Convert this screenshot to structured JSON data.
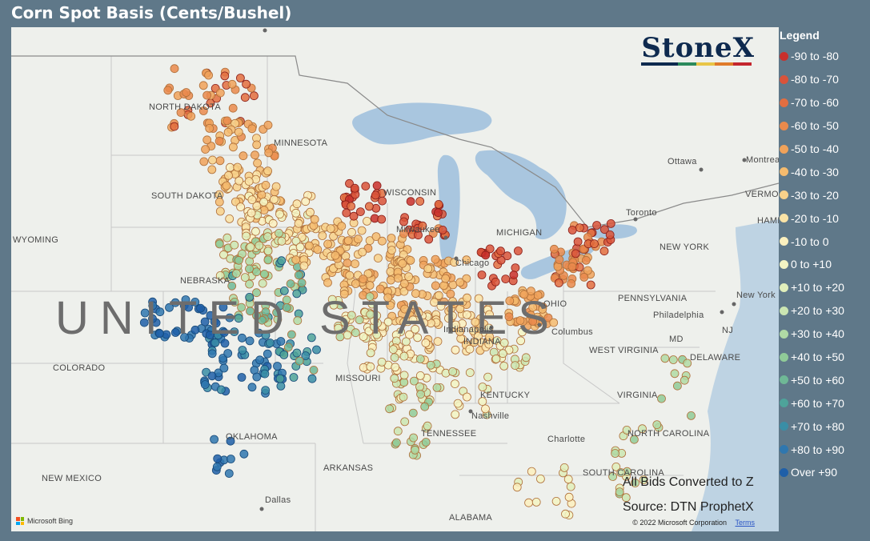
{
  "title": "Corn Spot Basis (Cents/Bushel)",
  "logo": {
    "text": "StoneX",
    "bar_colors": [
      "#0e2a4f",
      "#0e2a4f",
      "#2b8a5c",
      "#e8c547",
      "#e07b2a",
      "#c4262e"
    ]
  },
  "map": {
    "places": [
      {
        "name": "UNITED STATES",
        "big": true
      },
      {
        "name": "NORTH DAKOTA"
      },
      {
        "name": "MINNESOTA"
      },
      {
        "name": "SOUTH DAKOTA"
      },
      {
        "name": "WISCONSIN"
      },
      {
        "name": "WYOMING"
      },
      {
        "name": "NEBRASKA"
      },
      {
        "name": "COLORADO"
      },
      {
        "name": "MISSOURI"
      },
      {
        "name": "KENTUCKY"
      },
      {
        "name": "OKLAHOMA"
      },
      {
        "name": "TENNESSEE"
      },
      {
        "name": "ARKANSAS"
      },
      {
        "name": "NEW MEXICO"
      },
      {
        "name": "ALABAMA"
      },
      {
        "name": "Milwaukee"
      },
      {
        "name": "Chicago"
      },
      {
        "name": "MICHIGAN"
      },
      {
        "name": "Indianapolis"
      },
      {
        "name": "INDIANA"
      },
      {
        "name": "OHIO"
      },
      {
        "name": "Columbus"
      },
      {
        "name": "WEST VIRGINIA"
      },
      {
        "name": "VIRGINIA"
      },
      {
        "name": "PENNSYLVANIA"
      },
      {
        "name": "Philadelphia"
      },
      {
        "name": "NEW YORK"
      },
      {
        "name": "New York"
      },
      {
        "name": "NJ"
      },
      {
        "name": "MD"
      },
      {
        "name": "DELAWARE"
      },
      {
        "name": "Toronto"
      },
      {
        "name": "Ottawa"
      },
      {
        "name": "Montreal"
      },
      {
        "name": "VERMONT"
      },
      {
        "name": "HAMPSHIRE"
      },
      {
        "name": "Nashville"
      },
      {
        "name": "Charlotte"
      },
      {
        "name": "NORTH CAROLINA"
      },
      {
        "name": "SOUTH CAROLINA"
      },
      {
        "name": "Dallas"
      }
    ],
    "note_bids": "All Bids Converted to Z",
    "note_source": "Source: DTN ProphetX",
    "copyright": "© 2022 Microsoft Corporation",
    "terms": "Terms",
    "bing": "Microsoft Bing",
    "water_color": "#a9c6df",
    "land_color": "#eef0ec"
  },
  "legend": {
    "title": "Legend",
    "items": [
      {
        "label": "-90 to -80",
        "color": "#c9302c"
      },
      {
        "label": "-80 to -70",
        "color": "#d9533a"
      },
      {
        "label": "-70 to -60",
        "color": "#e36e40"
      },
      {
        "label": "-60 to -50",
        "color": "#ea8a4c"
      },
      {
        "label": "-50 to -40",
        "color": "#f0a25a"
      },
      {
        "label": "-40 to -30",
        "color": "#f5bb6e"
      },
      {
        "label": "-30 to -20",
        "color": "#f8d18a"
      },
      {
        "label": "-20 to -10",
        "color": "#fae3a6"
      },
      {
        "label": "-10 to 0",
        "color": "#fbf0be"
      },
      {
        "label": "0 to +10",
        "color": "#f3f4c3"
      },
      {
        "label": "+10 to +20",
        "color": "#e1efbb"
      },
      {
        "label": "+20 to +30",
        "color": "#cbe6b2"
      },
      {
        "label": "+30 to +40",
        "color": "#b0daa5"
      },
      {
        "label": "+40 to +50",
        "color": "#90cb98"
      },
      {
        "label": "+50 to +60",
        "color": "#6fb896"
      },
      {
        "label": "+60 to +70",
        "color": "#4ea39a"
      },
      {
        "label": "+70 to +80",
        "color": "#3a8ea6"
      },
      {
        "label": "+80 to +90",
        "color": "#2f77af"
      },
      {
        "label": "Over +90",
        "color": "#1f5fa8"
      }
    ]
  }
}
